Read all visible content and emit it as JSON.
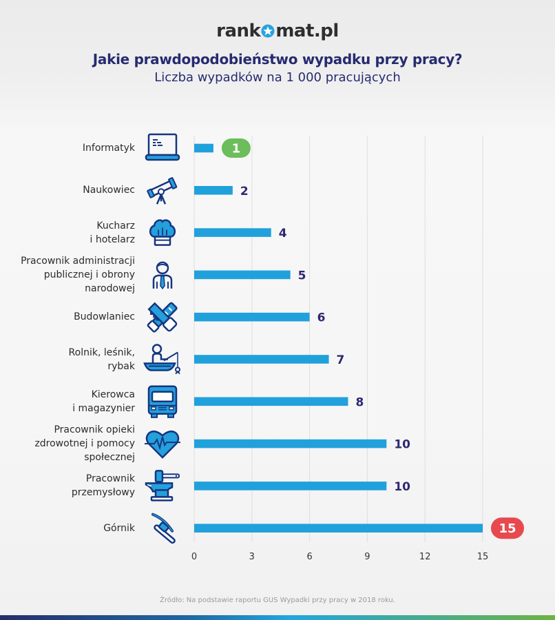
{
  "logo": {
    "text_before": "rank",
    "text_after": "mat.pl",
    "icon": "star-circle-icon"
  },
  "header": {
    "title": "Jakie prawdopodobieństwo wypadku przy pracy?",
    "subtitle": "Liczba wypadków na 1 000 pracujących"
  },
  "colors": {
    "bar": "#20a1dc",
    "value_text": "#2d2873",
    "badge_green": "#6cbd5b",
    "badge_red": "#e8494e",
    "grid": "#dedede",
    "icon_stroke": "#15357f",
    "icon_fill": "#24a0dc"
  },
  "chart_data": {
    "type": "bar",
    "orientation": "horizontal",
    "title": "Jakie prawdopodobieństwo wypadku przy pracy?",
    "subtitle": "Liczba wypadków na 1 000 pracujących",
    "xlabel": "",
    "ylabel": "",
    "xlim": [
      0,
      15
    ],
    "x_ticks": [
      "0",
      "3",
      "6",
      "9",
      "12",
      "15"
    ],
    "grid": true,
    "categories": [
      {
        "lines": [
          "Informatyk"
        ],
        "icon": "laptop-icon",
        "value": 1,
        "label": "1",
        "highlight": "green"
      },
      {
        "lines": [
          "Naukowiec"
        ],
        "icon": "telescope-icon",
        "value": 2,
        "label": "2",
        "highlight": ""
      },
      {
        "lines": [
          "Kucharz",
          "i hotelarz"
        ],
        "icon": "chef-hat-icon",
        "value": 4,
        "label": "4",
        "highlight": ""
      },
      {
        "lines": [
          "Pracownik administracji",
          "publicznej i obrony",
          "narodowej"
        ],
        "icon": "official-person-icon",
        "value": 5,
        "label": "5",
        "highlight": ""
      },
      {
        "lines": [
          "Budowlaniec"
        ],
        "icon": "saw-and-tools-icon",
        "value": 6,
        "label": "6",
        "highlight": ""
      },
      {
        "lines": [
          "Rolnik, leśnik,",
          "rybak"
        ],
        "icon": "fisherman-boat-icon",
        "value": 7,
        "label": "7",
        "highlight": ""
      },
      {
        "lines": [
          "Kierowca",
          "i magazynier"
        ],
        "icon": "truck-icon",
        "value": 8,
        "label": "8",
        "highlight": ""
      },
      {
        "lines": [
          "Pracownik opieki",
          "zdrowotnej i pomocy",
          "społecznej"
        ],
        "icon": "heart-pulse-icon",
        "value": 10,
        "label": "10",
        "highlight": ""
      },
      {
        "lines": [
          "Pracownik",
          "przemysłowy"
        ],
        "icon": "anvil-hammer-icon",
        "value": 10,
        "label": "10",
        "highlight": ""
      },
      {
        "lines": [
          "Górnik"
        ],
        "icon": "pickaxe-icon",
        "value": 15,
        "label": "15",
        "highlight": "red"
      }
    ],
    "values": [
      1,
      2,
      4,
      5,
      6,
      7,
      8,
      10,
      10,
      15
    ]
  },
  "footer": {
    "source": "Źródło: Na podstawie raportu GUS Wypadki przy pracy w 2018 roku."
  }
}
